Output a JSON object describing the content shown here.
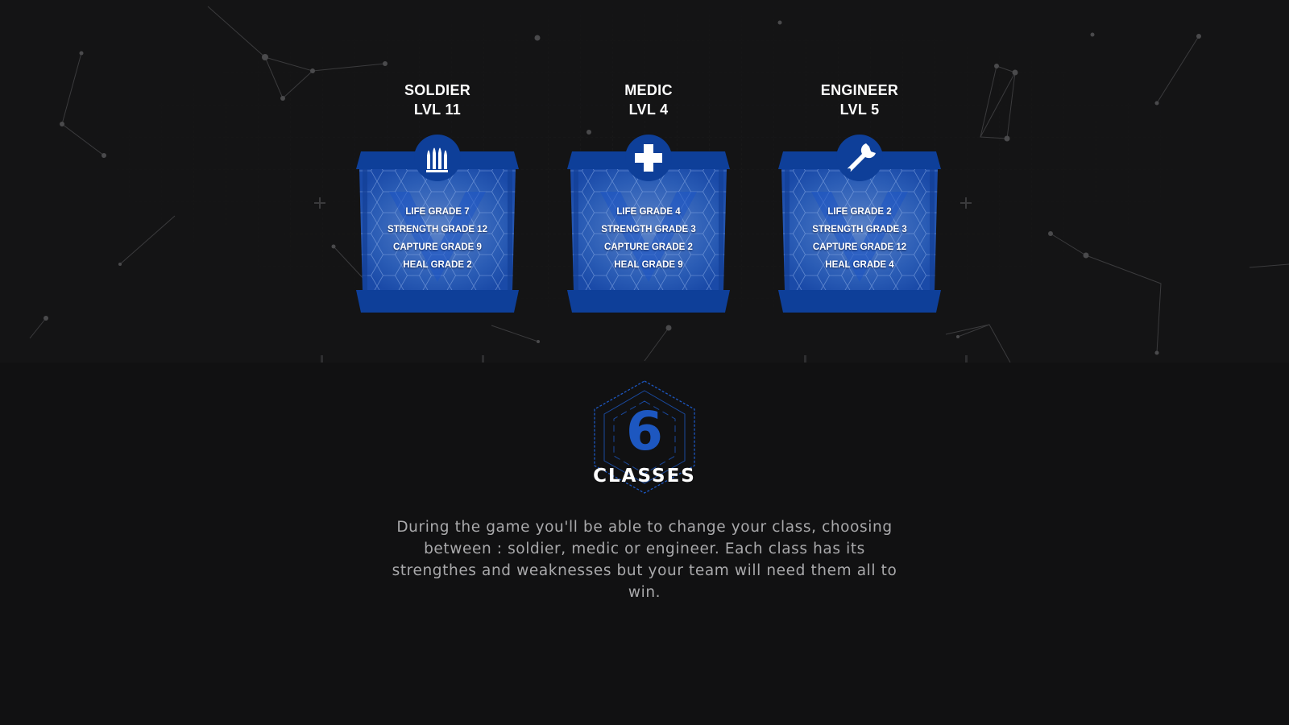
{
  "classes": [
    {
      "name": "SOLDIER",
      "level": "LVL 11",
      "icon": "bullets-icon",
      "stats": [
        "LIFE  GRADE 7",
        "STRENGTH GRADE 12",
        "CAPTURE GRADE 9",
        "HEAL GRADE 2"
      ]
    },
    {
      "name": "MEDIC",
      "level": "LVL 4",
      "icon": "medical-cross-icon",
      "stats": [
        "LIFE  GRADE 4",
        "STRENGTH GRADE 3",
        "CAPTURE GRADE 2",
        "HEAL GRADE 9"
      ]
    },
    {
      "name": "ENGINEER",
      "level": "LVL 5",
      "icon": "wrench-icon",
      "stats": [
        "LIFE  GRADE 2",
        "STRENGTH GRADE 3",
        "CAPTURE GRADE 12",
        "HEAL GRADE 4"
      ]
    }
  ],
  "badge": {
    "number": "6",
    "label": "CLASSES"
  },
  "description": "During the game you'll be able to change your class, choosing between : soldier, medic or engineer. Each class has its strengthes and weaknesses but your team will need them all to win.",
  "colors": {
    "background": "#111112",
    "card_blue": "#1a4fb0",
    "card_dark_blue": "#0e3f99",
    "accent_number": "#1d57c0",
    "text_muted": "#a9a9ab"
  }
}
